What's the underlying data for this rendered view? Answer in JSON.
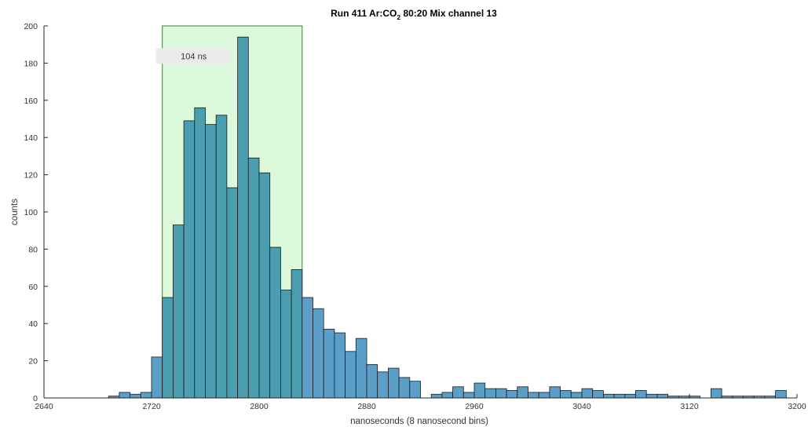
{
  "chart_data": {
    "type": "bar",
    "title_parts": [
      "Run 411 Ar:CO",
      "2",
      " 80:20 Mix channel 13"
    ],
    "xlabel": "nanoseconds (8 nanosecond bins)",
    "ylabel": "counts",
    "xlim": [
      2640,
      3200
    ],
    "ylim": [
      0,
      200
    ],
    "xticks": [
      2640,
      2720,
      2800,
      2880,
      2960,
      3040,
      3120,
      3200
    ],
    "yticks": [
      0,
      20,
      40,
      60,
      80,
      100,
      120,
      140,
      160,
      180,
      200
    ],
    "bin_width": 8,
    "bin_starts": [
      2688,
      2696,
      2704,
      2712,
      2720,
      2728,
      2736,
      2744,
      2752,
      2760,
      2768,
      2776,
      2784,
      2792,
      2800,
      2808,
      2816,
      2824,
      2832,
      2840,
      2848,
      2856,
      2864,
      2872,
      2880,
      2888,
      2896,
      2904,
      2912,
      2920,
      2928,
      2936,
      2944,
      2952,
      2960,
      2968,
      2976,
      2984,
      2992,
      3000,
      3008,
      3016,
      3024,
      3032,
      3040,
      3048,
      3056,
      3064,
      3072,
      3080,
      3088,
      3096,
      3104,
      3112,
      3120,
      3128,
      3136,
      3144,
      3152,
      3160,
      3168,
      3176,
      3184
    ],
    "values": [
      1,
      3,
      2,
      3,
      22,
      54,
      93,
      149,
      156,
      147,
      152,
      113,
      194,
      129,
      121,
      81,
      58,
      69,
      54,
      48,
      37,
      35,
      25,
      32,
      18,
      14,
      16,
      11,
      9,
      0,
      2,
      3,
      6,
      3,
      8,
      5,
      5,
      4,
      6,
      3,
      3,
      6,
      4,
      3,
      5,
      4,
      2,
      2,
      2,
      4,
      2,
      2,
      1,
      1,
      1,
      0,
      5,
      1,
      1,
      1,
      1,
      1,
      4
    ],
    "window": {
      "x_range": [
        2728,
        2832
      ],
      "y_top": 200,
      "label": "104 ns"
    },
    "colors": {
      "bar_fill": "#5b9fc9",
      "bar_fill_in_window": "#4a9eaf",
      "bar_edge": "#1a1a1a",
      "window_fill": "#dcf9dc",
      "window_edge": "#3a7d3a",
      "axis": "#262626",
      "annotation_bg": "#ebebeb"
    },
    "grid": false,
    "legend": "none"
  }
}
